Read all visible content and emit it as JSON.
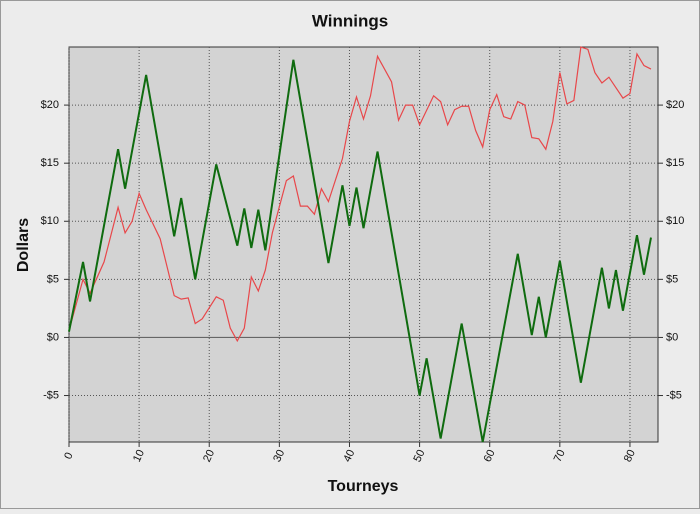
{
  "chart_data": {
    "type": "line",
    "title": "Winnings",
    "x_label": "Tourneys",
    "y_label": "Dollars",
    "xlim": [
      0,
      84
    ],
    "xticks": [
      0,
      10,
      20,
      30,
      40,
      50,
      60,
      70,
      80
    ],
    "ylim": [
      -9,
      25
    ],
    "yticks": [
      {
        "value": -5,
        "label": "-$5"
      },
      {
        "value": 0,
        "label": "$0"
      },
      {
        "value": 5,
        "label": "$5"
      },
      {
        "value": 10,
        "label": "$10"
      },
      {
        "value": 15,
        "label": "$15"
      },
      {
        "value": 20,
        "label": "$20"
      }
    ],
    "grid": true,
    "series": [
      {
        "color": "#e8474a",
        "x": [
          0,
          2,
          3,
          5,
          7,
          8,
          9,
          10,
          11,
          13,
          15,
          16,
          17,
          18,
          19,
          21,
          22,
          23,
          24,
          25,
          26,
          27,
          28,
          29,
          31,
          32,
          33,
          34,
          35,
          36,
          37,
          39,
          40,
          41,
          42,
          43,
          44,
          46,
          47,
          48,
          49,
          50,
          52,
          53,
          54,
          55,
          56,
          57,
          58,
          59,
          60,
          61,
          62,
          63,
          64,
          65,
          66,
          67,
          68,
          69,
          70,
          71,
          72,
          73,
          74,
          75,
          76,
          77,
          78,
          79,
          80,
          81,
          82,
          83
        ],
        "values": [
          0.6,
          5,
          3.8,
          6.5,
          11.2,
          9,
          10,
          12.4,
          11,
          8.5,
          3.6,
          3.3,
          3.4,
          1.2,
          1.6,
          3.5,
          3.2,
          0.8,
          -0.3,
          0.8,
          5.2,
          4,
          5.8,
          9,
          13.5,
          13.9,
          11.3,
          11.3,
          10.6,
          12.8,
          11.7,
          15.4,
          18.6,
          20.7,
          18.8,
          20.8,
          24.2,
          22,
          18.7,
          20,
          20,
          18.3,
          20.8,
          20.3,
          18.3,
          19.6,
          19.9,
          19.9,
          17.8,
          16.4,
          19.6,
          20.9,
          19,
          18.8,
          20.3,
          20,
          17.2,
          17.1,
          16.2,
          18.6,
          22.8,
          20.1,
          20.4,
          25,
          24.8,
          22.8,
          21.9,
          22.4,
          21.5,
          20.6,
          21,
          24.4,
          23.4,
          23.1
        ]
      },
      {
        "color": "#0f6b0f",
        "x": [
          0,
          2,
          3,
          7,
          8,
          11,
          15,
          16,
          18,
          21,
          24,
          25,
          26,
          27,
          28,
          32,
          37,
          39,
          40,
          41,
          42,
          44,
          50,
          51,
          53,
          56,
          59,
          64,
          66,
          67,
          68,
          70,
          73,
          76,
          77,
          78,
          79,
          81,
          82,
          83
        ],
        "values": [
          0.5,
          6.5,
          3.1,
          16.2,
          12.8,
          22.6,
          8.7,
          12,
          5,
          14.9,
          7.9,
          11.1,
          7.7,
          11,
          7.5,
          23.9,
          6.4,
          13.1,
          9.6,
          12.9,
          9.4,
          16,
          -5,
          -1.8,
          -8.7,
          1.2,
          -9,
          7.2,
          0.2,
          3.5,
          0,
          6.6,
          -3.9,
          6,
          2.5,
          5.8,
          2.3,
          8.8,
          5.4,
          8.6
        ]
      }
    ]
  }
}
